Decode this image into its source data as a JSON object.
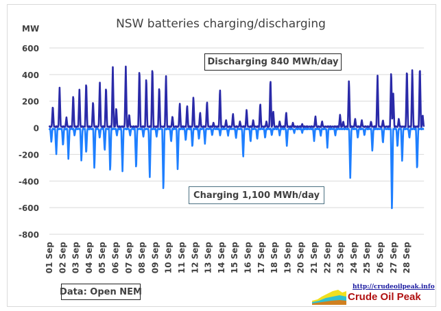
{
  "chart_data": {
    "type": "line",
    "title": "NSW batteries charging/discharging",
    "ylabel": "MW",
    "ylim": [
      -800,
      600
    ],
    "yticks": [
      600,
      400,
      200,
      0,
      -200,
      -400,
      -600,
      -800
    ],
    "xlim": [
      1,
      29.3
    ],
    "xticks": [
      "01 Sep",
      "02 Sep",
      "03 Sep",
      "04 Sep",
      "05 Sep",
      "06 Sep",
      "07 Sep",
      "08 Sep",
      "09 Sep",
      "10 Sep",
      "11 Sep",
      "12 Sep",
      "13 Sep",
      "14 Sep",
      "15 Sep",
      "16 Sep",
      "17 Sep",
      "18 Sep",
      "19 Sep",
      "20 Sep",
      "21 Sep",
      "22 Sep",
      "23 Sep",
      "24 Sep",
      "25 Sep",
      "26 Sep",
      "27 Sep",
      "28 Sep"
    ],
    "grid": true,
    "series": [
      {
        "key": "discharging",
        "color": "#2a2aa8",
        "peaks": [
          [
            1.26,
            170
          ],
          [
            1.77,
            305
          ],
          [
            2.29,
            80
          ],
          [
            2.8,
            255
          ],
          [
            3.27,
            290
          ],
          [
            3.78,
            355
          ],
          [
            4.3,
            205
          ],
          [
            4.81,
            350
          ],
          [
            5.28,
            320
          ],
          [
            5.79,
            465
          ],
          [
            6.05,
            155
          ],
          [
            6.77,
            465
          ],
          [
            7.03,
            105
          ],
          [
            7.8,
            455
          ],
          [
            8.32,
            390
          ],
          [
            8.78,
            475
          ],
          [
            9.3,
            320
          ],
          [
            9.81,
            400
          ],
          [
            10.3,
            90
          ],
          [
            10.85,
            190
          ],
          [
            11.41,
            175
          ],
          [
            11.88,
            240
          ],
          [
            12.39,
            120
          ],
          [
            12.91,
            205
          ],
          [
            13.4,
            40
          ],
          [
            13.89,
            300
          ],
          [
            14.35,
            60
          ],
          [
            14.87,
            110
          ],
          [
            15.4,
            50
          ],
          [
            15.9,
            140
          ],
          [
            16.4,
            60
          ],
          [
            16.93,
            190
          ],
          [
            17.4,
            50
          ],
          [
            17.7,
            380
          ],
          [
            17.91,
            130
          ],
          [
            18.4,
            50
          ],
          [
            18.89,
            120
          ],
          [
            19.4,
            40
          ],
          [
            20.1,
            30
          ],
          [
            21.1,
            90
          ],
          [
            21.6,
            50
          ],
          [
            22.96,
            100
          ],
          [
            23.2,
            50
          ],
          [
            23.63,
            370
          ],
          [
            24.1,
            70
          ],
          [
            24.6,
            60
          ],
          [
            25.3,
            50
          ],
          [
            25.79,
            400
          ],
          [
            26.2,
            60
          ],
          [
            26.82,
            440
          ],
          [
            26.98,
            260
          ],
          [
            27.4,
            70
          ],
          [
            28.01,
            460
          ],
          [
            28.42,
            450
          ],
          [
            28.99,
            480
          ],
          [
            29.2,
            100
          ]
        ]
      },
      {
        "key": "charging",
        "color": "#1e7fff",
        "peaks": [
          [
            1.15,
            -110
          ],
          [
            1.52,
            -200
          ],
          [
            2.03,
            -140
          ],
          [
            2.44,
            -240
          ],
          [
            2.9,
            -60
          ],
          [
            3.42,
            -255
          ],
          [
            3.78,
            -200
          ],
          [
            4.4,
            -315
          ],
          [
            4.8,
            -80
          ],
          [
            5.18,
            -180
          ],
          [
            5.59,
            -340
          ],
          [
            6.1,
            -60
          ],
          [
            6.52,
            -330
          ],
          [
            7.1,
            -60
          ],
          [
            7.55,
            -320
          ],
          [
            8.1,
            -70
          ],
          [
            8.58,
            -385
          ],
          [
            9.1,
            -70
          ],
          [
            9.61,
            -485
          ],
          [
            10.2,
            -110
          ],
          [
            10.69,
            -320
          ],
          [
            11.3,
            -100
          ],
          [
            11.8,
            -150
          ],
          [
            12.3,
            -90
          ],
          [
            12.75,
            -120
          ],
          [
            13.3,
            -60
          ],
          [
            13.9,
            -60
          ],
          [
            14.5,
            -60
          ],
          [
            15.1,
            -80
          ],
          [
            15.64,
            -230
          ],
          [
            16.2,
            -110
          ],
          [
            16.7,
            -90
          ],
          [
            17.3,
            -80
          ],
          [
            17.8,
            -60
          ],
          [
            18.4,
            -60
          ],
          [
            18.94,
            -140
          ],
          [
            19.5,
            -40
          ],
          [
            20.1,
            -40
          ],
          [
            21.0,
            -100
          ],
          [
            21.5,
            -60
          ],
          [
            22.0,
            -150
          ],
          [
            22.6,
            -60
          ],
          [
            23.73,
            -380
          ],
          [
            24.3,
            -80
          ],
          [
            24.8,
            -60
          ],
          [
            25.4,
            -180
          ],
          [
            26.2,
            -120
          ],
          [
            26.88,
            -640
          ],
          [
            27.3,
            -150
          ],
          [
            27.65,
            -260
          ],
          [
            28.2,
            -80
          ],
          [
            28.78,
            -330
          ]
        ]
      }
    ],
    "annotations": {
      "discharging": "Discharging 840 MWh/day",
      "charging": "Charging  1,100 MWh/day",
      "source": "Data: Open NEM"
    }
  },
  "logo": {
    "url_text": "http://crudeoilpeak.info",
    "name": "Crude Oil Peak"
  }
}
